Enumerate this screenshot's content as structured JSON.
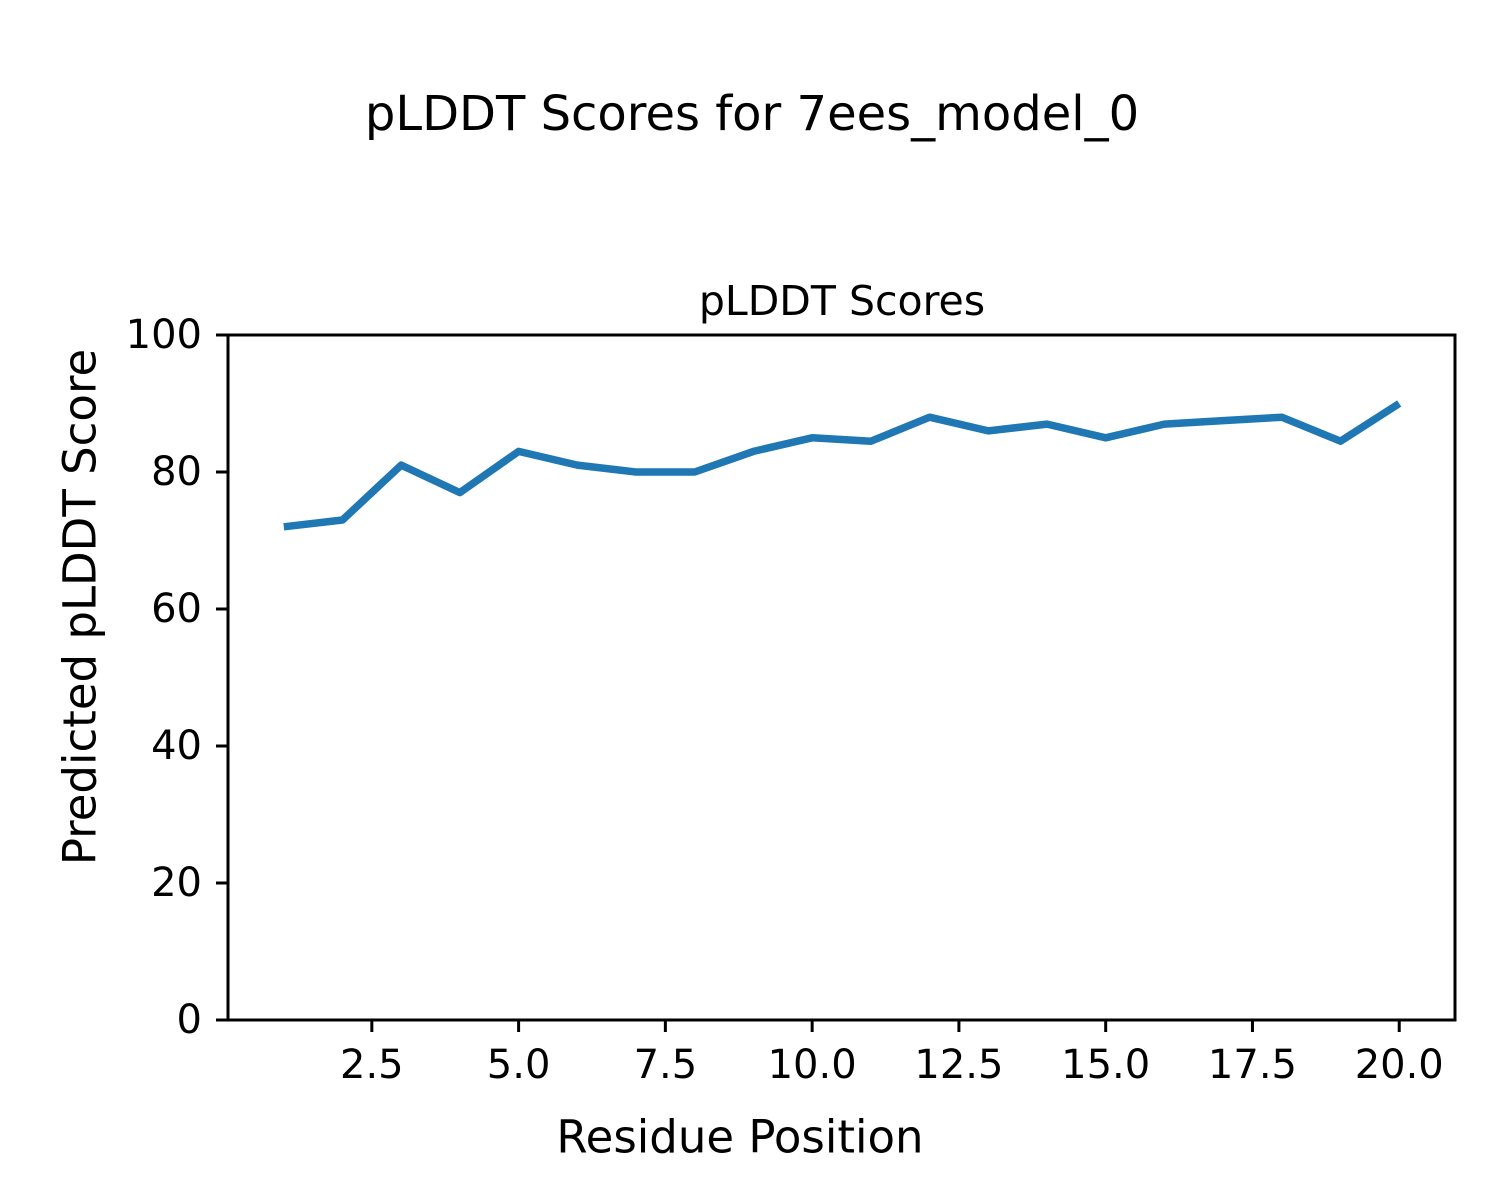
{
  "figure": {
    "suptitle": "pLDDT Scores for 7ees_model_0",
    "background_color": "#ffffff",
    "text_color": "#000000"
  },
  "chart_data": {
    "type": "line",
    "title": "pLDDT Scores",
    "xlabel": "Residue Position",
    "ylabel": "Predicted pLDDT Score",
    "x": [
      1,
      2,
      3,
      4,
      5,
      6,
      7,
      8,
      9,
      10,
      11,
      12,
      13,
      14,
      15,
      16,
      17,
      18,
      19,
      20
    ],
    "y": [
      72,
      73,
      81,
      77,
      83,
      81,
      80,
      80,
      83,
      85,
      84.5,
      88,
      86,
      87,
      85,
      87,
      87.5,
      88,
      84.5,
      90
    ],
    "series_name": "pLDDT",
    "xlim": [
      0.05,
      20.95
    ],
    "ylim": [
      0,
      100
    ],
    "xticks": {
      "values": [
        2.5,
        5.0,
        7.5,
        10.0,
        12.5,
        15.0,
        17.5,
        20.0
      ],
      "labels": [
        "2.5",
        "5.0",
        "7.5",
        "10.0",
        "12.5",
        "15.0",
        "17.5",
        "20.0"
      ]
    },
    "yticks": {
      "values": [
        0,
        20,
        40,
        60,
        80,
        100
      ],
      "labels": [
        "0",
        "20",
        "40",
        "60",
        "80",
        "100"
      ]
    },
    "line_color": "#1f77b4",
    "spine_color": "#000000",
    "grid": false,
    "legend": null
  }
}
